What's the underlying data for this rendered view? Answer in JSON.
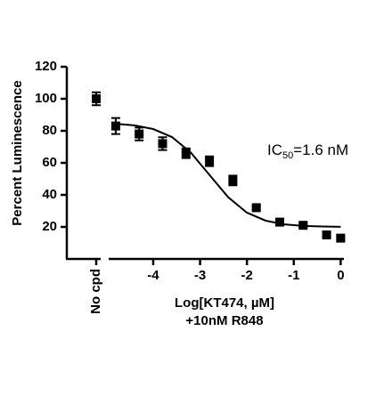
{
  "chart_data": {
    "type": "scatter",
    "ylabel": "Percent Luminescence",
    "xlabel": "Log[KT474, µM]",
    "xlabel2": "+10nM R848",
    "annotation": {
      "text": "IC",
      "sub": "50",
      "rest": "=1.6 nM"
    },
    "control": {
      "category": "No cpd",
      "value": 100,
      "error": 4
    },
    "xlim": [
      -4.95,
      0.05
    ],
    "xticks": [
      -4,
      -3,
      -2,
      -1,
      0
    ],
    "ylim": [
      0,
      120
    ],
    "yticks": [
      20,
      40,
      60,
      80,
      100,
      120
    ],
    "color": "#000000",
    "series": [
      {
        "x": [
          -4.8,
          -4.3,
          -3.8,
          -3.3,
          -2.8,
          -2.3,
          -1.8,
          -1.3,
          -0.8,
          -0.3,
          0
        ],
        "values": [
          83,
          78,
          72,
          66,
          61,
          49,
          32,
          23,
          21,
          15,
          13
        ],
        "errors": [
          5,
          4,
          4,
          3,
          3,
          3,
          1,
          1,
          1,
          1,
          1
        ]
      }
    ],
    "fit": {
      "x": [
        -4.8,
        -4.4,
        -4.0,
        -3.6,
        -3.2,
        -2.8,
        -2.4,
        -2.0,
        -1.6,
        -1.2,
        -0.8,
        -0.4,
        0
      ],
      "values": [
        84.4,
        83.4,
        81.1,
        76.1,
        66.5,
        52.5,
        38.5,
        28.9,
        23.9,
        21.6,
        20.6,
        20.3,
        20.1
      ]
    }
  }
}
